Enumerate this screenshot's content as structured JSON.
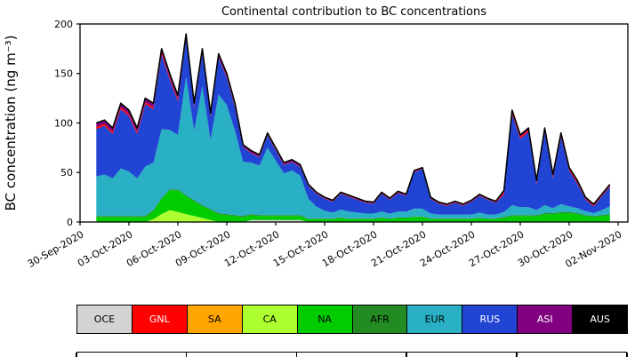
{
  "title": "Continental contribution to BC concentrations",
  "ylabel": "BC concentration (ng m⁻³)",
  "chart_data": {
    "type": "area",
    "stacked": true,
    "title": "Continental contribution to BC concentrations",
    "xlabel": "",
    "ylabel": "BC concentration (ng m⁻³)",
    "x_unit": "days since 30-Sep-2020",
    "xlim": [
      0,
      33.6
    ],
    "ylim": [
      0,
      200
    ],
    "outline_color": "#000000",
    "grid": false,
    "legend_position": "bottom",
    "x_ticks": [
      {
        "pos": 0,
        "label": "30-Sep-2020"
      },
      {
        "pos": 3,
        "label": "03-Oct-2020"
      },
      {
        "pos": 6,
        "label": "06-Oct-2020"
      },
      {
        "pos": 9,
        "label": "09-Oct-2020"
      },
      {
        "pos": 12,
        "label": "12-Oct-2020"
      },
      {
        "pos": 15,
        "label": "15-Oct-2020"
      },
      {
        "pos": 18,
        "label": "18-Oct-2020"
      },
      {
        "pos": 21,
        "label": "21-Oct-2020"
      },
      {
        "pos": 24,
        "label": "24-Oct-2020"
      },
      {
        "pos": 27,
        "label": "27-Oct-2020"
      },
      {
        "pos": 30,
        "label": "30-Oct-2020"
      },
      {
        "pos": 33,
        "label": "02-Nov-2020"
      }
    ],
    "y_ticks": [
      0,
      50,
      100,
      150,
      200
    ],
    "x": [
      1,
      1.5,
      2,
      2.5,
      3,
      3.5,
      4,
      4.5,
      5,
      5.5,
      6,
      6.5,
      7,
      7.5,
      8,
      8.5,
      9,
      9.5,
      10,
      10.5,
      11,
      11.5,
      12,
      12.5,
      13,
      13.5,
      14,
      14.5,
      15,
      15.5,
      16,
      16.5,
      17,
      17.5,
      18,
      18.5,
      19,
      19.5,
      20,
      20.5,
      21,
      21.5,
      22,
      22.5,
      23,
      23.5,
      24,
      24.5,
      25,
      25.5,
      26,
      26.5,
      27,
      27.5,
      28,
      28.5,
      29,
      29.5,
      30,
      30.5,
      31,
      31.5,
      32,
      32.5
    ],
    "series": [
      {
        "name": "OCE",
        "color": "#d3d3d3",
        "values": [
          0,
          0,
          0,
          0,
          0,
          0,
          0,
          0,
          0,
          0,
          0,
          0,
          0,
          0,
          0,
          0,
          0,
          0,
          0,
          2,
          2,
          2,
          2,
          2,
          2,
          2,
          0,
          0,
          0,
          0,
          0,
          0,
          0,
          0,
          0,
          0,
          0,
          0,
          0,
          0,
          0,
          0,
          0,
          0,
          0,
          0,
          0,
          0,
          0,
          0,
          0,
          0,
          0,
          0,
          0,
          0,
          0,
          0,
          0,
          0,
          0,
          0,
          0,
          0
        ]
      },
      {
        "name": "SA",
        "color": "#ffa500",
        "values": [
          0,
          0,
          0,
          0,
          0,
          0,
          0,
          0,
          0,
          0,
          0,
          0,
          0,
          0,
          0,
          0,
          0,
          0,
          0,
          0,
          0,
          0,
          0,
          0,
          0,
          0,
          0,
          0,
          0,
          0,
          0,
          0,
          0,
          0,
          0,
          0,
          0,
          0,
          0,
          0,
          0,
          0,
          0,
          0,
          0,
          0,
          0,
          0,
          0,
          0,
          0,
          0,
          0,
          0,
          0,
          0,
          0,
          0,
          0,
          0,
          0,
          0,
          0,
          0
        ]
      },
      {
        "name": "CA",
        "color": "#adff2f",
        "values": [
          0,
          0,
          0,
          0,
          0,
          0,
          0,
          3,
          8,
          12,
          10,
          8,
          6,
          4,
          2,
          0,
          0,
          0,
          0,
          0,
          0,
          0,
          0,
          0,
          0,
          0,
          0,
          0,
          0,
          0,
          0,
          0,
          0,
          0,
          0,
          0,
          0,
          0,
          0,
          0,
          0,
          0,
          0,
          0,
          0,
          0,
          0,
          0,
          0,
          0,
          0,
          0,
          0,
          0,
          0,
          0,
          0,
          0,
          0,
          0,
          0,
          0,
          0,
          0
        ]
      },
      {
        "name": "NA",
        "color": "#00cc00",
        "values": [
          5,
          5,
          5,
          5,
          5,
          5,
          5,
          8,
          15,
          20,
          22,
          18,
          15,
          12,
          10,
          8,
          7,
          6,
          5,
          5,
          4,
          4,
          4,
          4,
          4,
          4,
          3,
          3,
          3,
          3,
          4,
          3,
          3,
          3,
          3,
          4,
          3,
          4,
          4,
          5,
          5,
          3,
          3,
          3,
          3,
          3,
          3,
          4,
          3,
          3,
          4,
          6,
          6,
          6,
          6,
          8,
          8,
          9,
          9,
          8,
          6,
          5,
          6,
          7
        ]
      },
      {
        "name": "AFR",
        "color": "#228b22",
        "values": [
          1,
          1,
          1,
          1,
          1,
          1,
          1,
          1,
          1,
          1,
          1,
          1,
          1,
          1,
          1,
          1,
          1,
          1,
          1,
          1,
          1,
          1,
          1,
          1,
          1,
          1,
          0.5,
          0.5,
          0.5,
          0.5,
          0.5,
          0.5,
          0.5,
          0.5,
          0.5,
          0.5,
          0.5,
          0.5,
          0.5,
          0.5,
          0.5,
          0.5,
          0.5,
          0.5,
          0.5,
          0.5,
          0.5,
          0.5,
          0.5,
          0.5,
          1,
          1,
          1,
          1,
          1,
          1,
          1,
          1,
          1,
          1,
          1,
          1,
          1,
          1
        ]
      },
      {
        "name": "EUR",
        "color": "#29b0c4",
        "values": [
          40,
          42,
          38,
          48,
          45,
          38,
          50,
          48,
          70,
          60,
          55,
          120,
          70,
          120,
          70,
          120,
          110,
          85,
          55,
          52,
          50,
          68,
          55,
          42,
          45,
          40,
          20,
          12,
          8,
          6,
          8,
          7,
          6,
          5,
          5,
          6,
          5,
          6,
          6,
          8,
          8,
          5,
          4,
          4,
          4,
          4,
          4,
          5,
          4,
          4,
          5,
          10,
          8,
          8,
          5,
          8,
          5,
          8,
          6,
          5,
          4,
          3,
          5,
          8
        ]
      },
      {
        "name": "RUS",
        "color": "#2244d5",
        "values": [
          48,
          49,
          45,
          60,
          56,
          45,
          63,
          54,
          75,
          51,
          34,
          38,
          23,
          33,
          23,
          37,
          28,
          24,
          14.5,
          9.5,
          8.5,
          12.5,
          10.5,
          8.5,
          8.5,
          8.5,
          13,
          13,
          12,
          11,
          16,
          15,
          13,
          11,
          10,
          18,
          14,
          19,
          16,
          37,
          40,
          15,
          11,
          9,
          12,
          9,
          13,
          17,
          15,
          12,
          18,
          92,
          69,
          76,
          26,
          74,
          30,
          68,
          36,
          25,
          12,
          7,
          14,
          20
        ]
      },
      {
        "name": "GNL",
        "color": "#ff0000",
        "values": [
          2,
          2,
          2,
          2,
          2,
          2,
          2,
          2,
          2,
          2,
          2,
          1,
          1,
          1,
          1,
          1,
          1,
          1,
          0.5,
          0.5,
          0.5,
          0.5,
          0.5,
          0.5,
          0.5,
          0.5,
          0.5,
          0.5,
          0.5,
          0.5,
          0.5,
          0.5,
          0.5,
          0.5,
          0.5,
          0.5,
          0.5,
          0.5,
          0.5,
          0.5,
          0.5,
          0.5,
          0.5,
          0.5,
          0.5,
          0.5,
          0.5,
          0.5,
          0.5,
          0.5,
          2,
          2,
          2,
          2,
          2,
          2,
          2,
          2,
          2,
          2,
          1,
          1,
          1,
          1
        ]
      },
      {
        "name": "ASI",
        "color": "#800080",
        "values": [
          4,
          4,
          4,
          4,
          4,
          4,
          4,
          4,
          4,
          4,
          4,
          4,
          4,
          4,
          3,
          3,
          3,
          3,
          2,
          2,
          2,
          2,
          2,
          2,
          2,
          2,
          1,
          1,
          1,
          1,
          1,
          1,
          1,
          1,
          1,
          1,
          1,
          1,
          1,
          1,
          1,
          1,
          1,
          1,
          1,
          1,
          1,
          1,
          1,
          1,
          2,
          2,
          2,
          2,
          2,
          2,
          2,
          2,
          1,
          1,
          1,
          1,
          1,
          1
        ]
      },
      {
        "name": "AUS",
        "color": "#000000",
        "values": [
          0,
          0,
          0,
          0,
          0,
          0,
          0,
          0,
          0,
          0,
          0,
          0,
          0,
          0,
          0,
          0,
          0,
          0,
          0,
          0,
          0,
          0,
          0,
          0,
          0,
          0,
          0,
          0,
          0,
          0,
          0,
          0,
          0,
          0,
          0,
          0,
          0,
          0,
          0,
          0,
          0,
          0,
          0,
          0,
          0,
          0,
          0,
          0,
          0,
          0,
          0,
          0,
          0,
          0,
          0,
          0,
          0,
          0,
          0,
          0,
          0,
          0,
          0,
          0
        ]
      }
    ]
  },
  "legend": {
    "entries": [
      {
        "label": "OCE",
        "color": "#d3d3d3",
        "text_color": "#000000"
      },
      {
        "label": "GNL",
        "color": "#ff0000",
        "text_color": "#ffffff"
      },
      {
        "label": "SA",
        "color": "#ffa500",
        "text_color": "#000000"
      },
      {
        "label": "CA",
        "color": "#adff2f",
        "text_color": "#000000"
      },
      {
        "label": "NA",
        "color": "#00cc00",
        "text_color": "#000000"
      },
      {
        "label": "AFR",
        "color": "#228b22",
        "text_color": "#000000"
      },
      {
        "label": "EUR",
        "color": "#29b0c4",
        "text_color": "#000000"
      },
      {
        "label": "RUS",
        "color": "#2244d5",
        "text_color": "#ffffff"
      },
      {
        "label": "ASI",
        "color": "#800080",
        "text_color": "#ffffff"
      },
      {
        "label": "AUS",
        "color": "#000000",
        "text_color": "#ffffff"
      }
    ]
  }
}
